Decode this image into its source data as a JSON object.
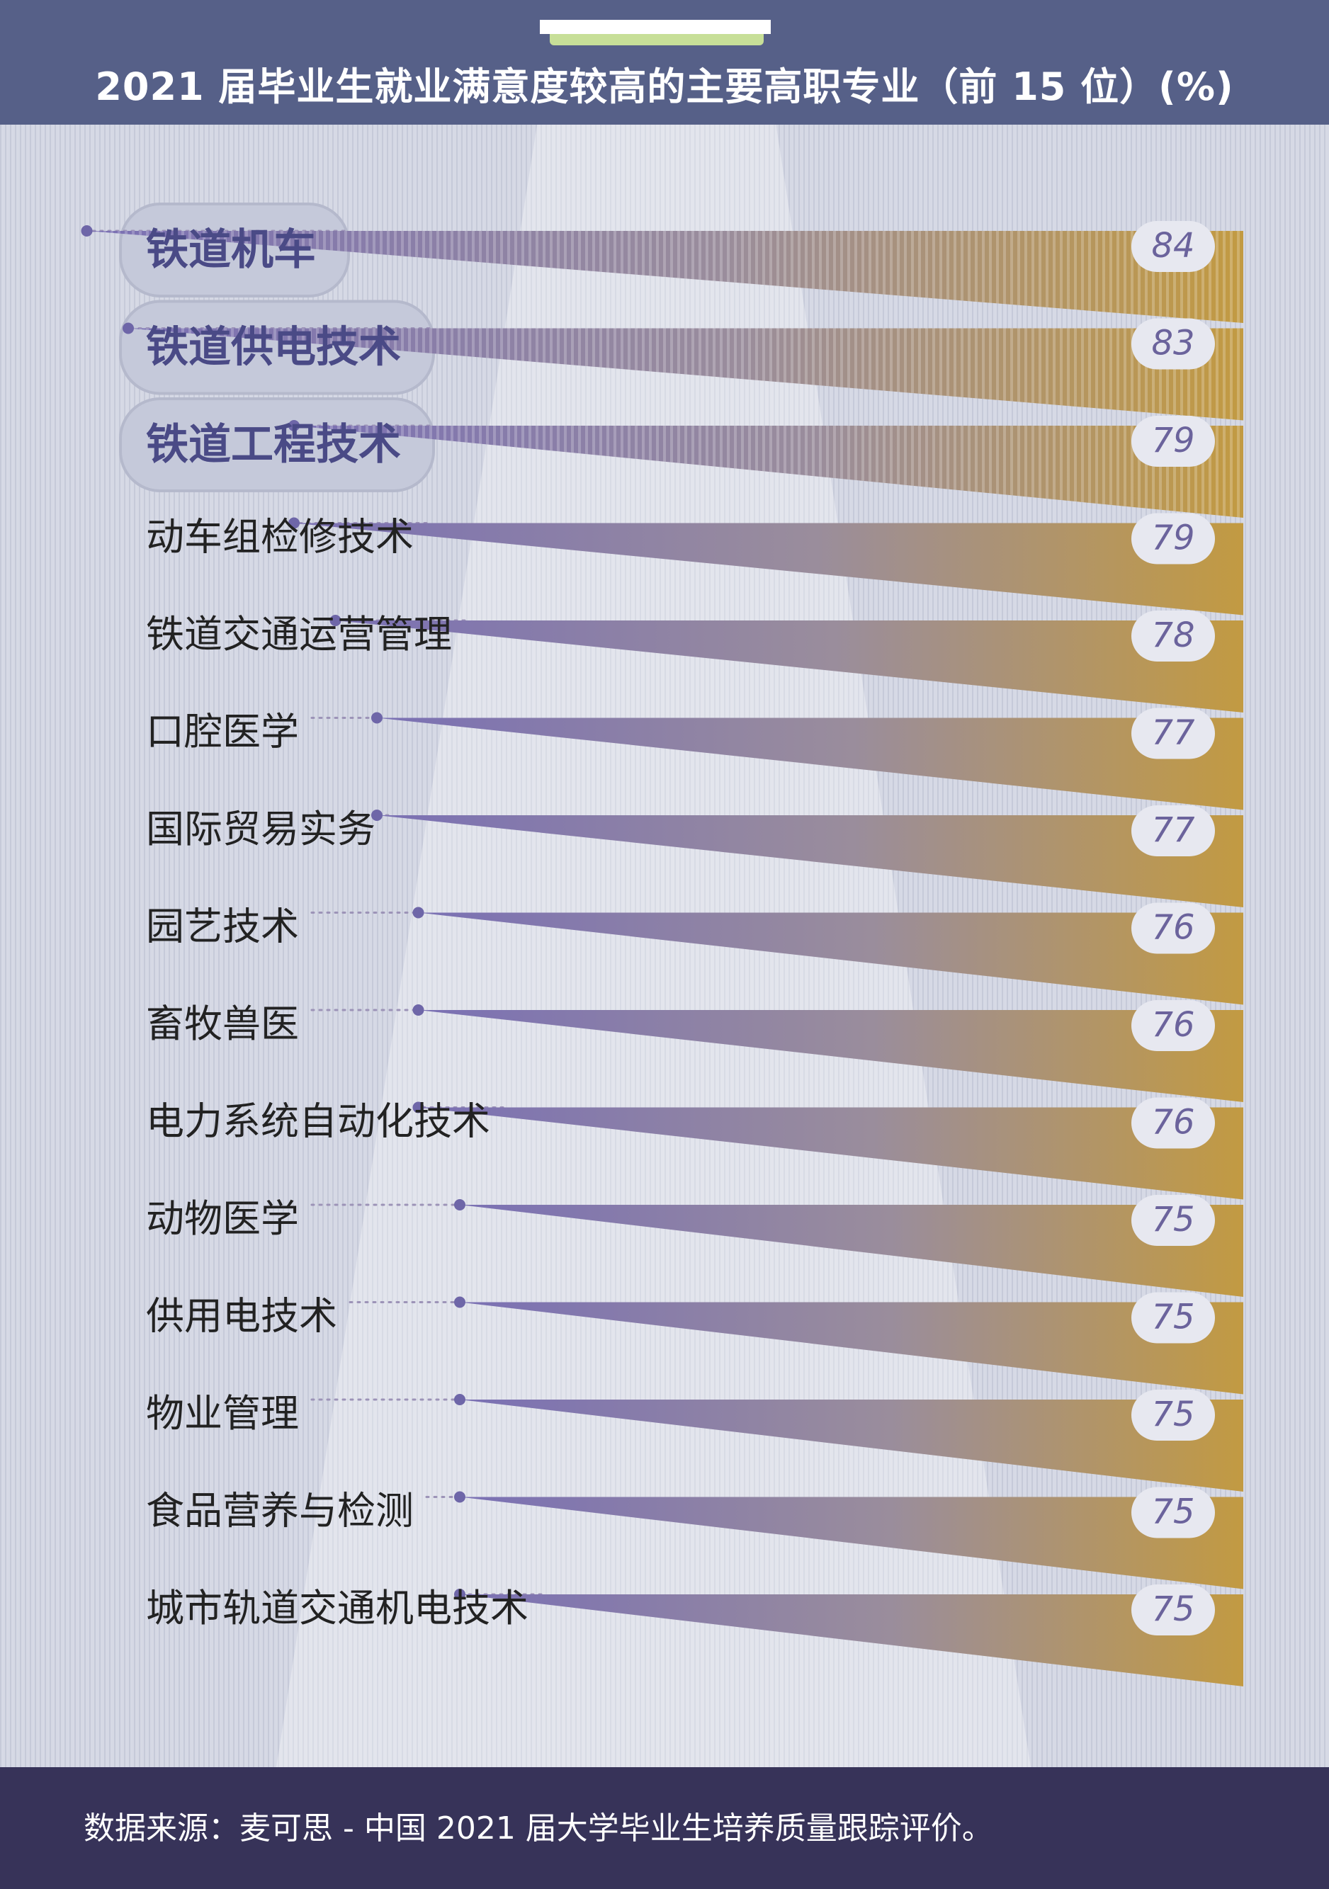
{
  "header": {
    "title": "2021 届毕业生就业满意度较高的主要高职专业（前 15 位）(%)"
  },
  "footer": {
    "source": "数据来源：麦可思 - 中国 2021 届大学毕业生培养质量跟踪评价。"
  },
  "colors": {
    "header_bg": "#566088",
    "footer_bg": "#373359",
    "background": "#dcdfe9",
    "accent_purple": "#7b72b3",
    "accent_gold": "#c29a44",
    "highlight_pill": "#c6cadb"
  },
  "chart_data": {
    "type": "bar",
    "title": "2021 届毕业生就业满意度较高的主要高职专业（前 15 位）(%)",
    "unit": "%",
    "categories": [
      "铁道机车",
      "铁道供电技术",
      "铁道工程技术",
      "动车组检修技术",
      "铁道交通运营管理",
      "口腔医学",
      "国际贸易实务",
      "园艺技术",
      "畜牧兽医",
      "电力系统自动化技术",
      "动物医学",
      "供用电技术",
      "物业管理",
      "食品营养与检测",
      "城市轨道交通机电技术"
    ],
    "values": [
      84,
      83,
      79,
      79,
      78,
      77,
      77,
      76,
      76,
      76,
      75,
      75,
      75,
      75,
      75
    ],
    "highlighted": [
      "铁道机车",
      "铁道供电技术",
      "铁道工程技术"
    ]
  }
}
